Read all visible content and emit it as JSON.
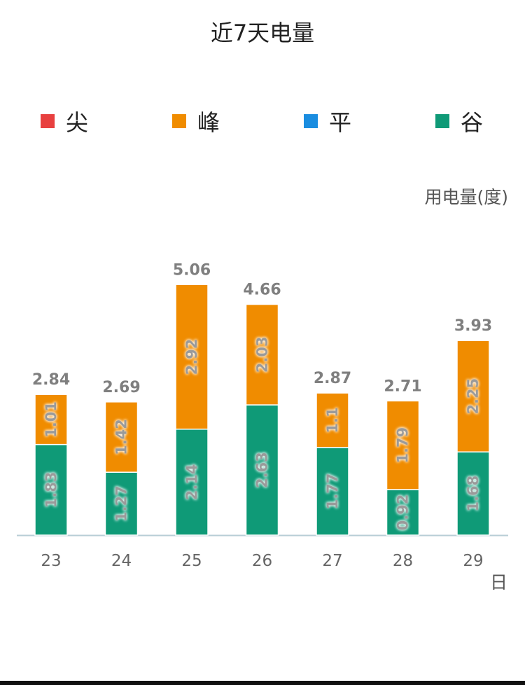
{
  "page": {
    "title": "近7天电量"
  },
  "legend": [
    {
      "name": "尖",
      "color": "#e8403f"
    },
    {
      "name": "峰",
      "color": "#f08c00"
    },
    {
      "name": "平",
      "color": "#1a8de0"
    },
    {
      "name": "谷",
      "color": "#0f9a77"
    }
  ],
  "chart_data": {
    "type": "bar",
    "stacked": true,
    "title": "近7天电量",
    "ylabel": "用电量(度)",
    "xlabel": "日",
    "categories": [
      "23",
      "24",
      "25",
      "26",
      "27",
      "28",
      "29"
    ],
    "series": [
      {
        "name": "谷",
        "color": "#0f9a77",
        "values": [
          1.83,
          1.27,
          2.14,
          2.63,
          1.77,
          0.92,
          1.68
        ]
      },
      {
        "name": "峰",
        "color": "#f08c00",
        "values": [
          1.01,
          1.42,
          2.92,
          2.03,
          1.1,
          1.79,
          2.25
        ]
      }
    ],
    "totals": [
      2.84,
      2.69,
      5.06,
      4.66,
      2.87,
      2.71,
      3.93
    ],
    "grid": false,
    "legend_position": "top"
  }
}
